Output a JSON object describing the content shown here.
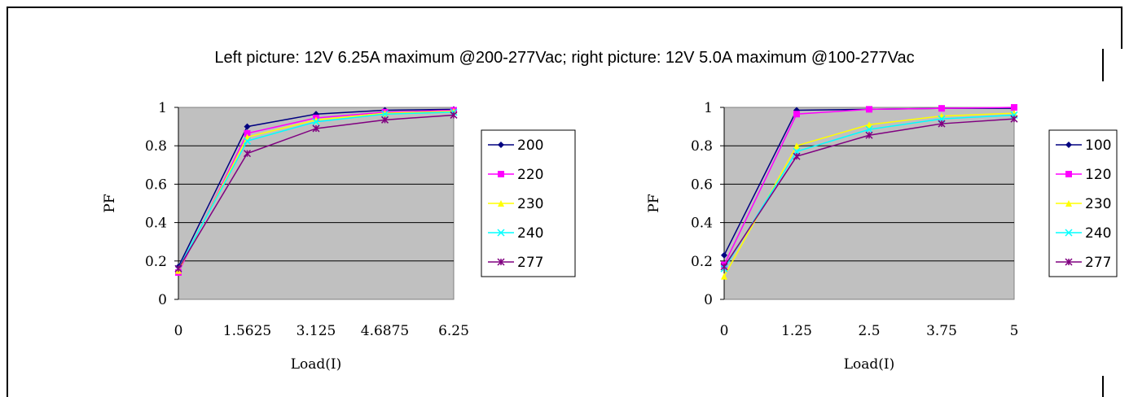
{
  "caption": "Left picture: 12V 6.25A maximum @200-277Vac; right picture: 12V 5.0A maximum @100-277Vac",
  "chart_data": [
    {
      "type": "line",
      "title": "",
      "xlabel": "Load(I)",
      "ylabel": "PF",
      "ylim": [
        0,
        1
      ],
      "yticks": [
        "0",
        "0.2",
        "0.4",
        "0.6",
        "0.8",
        "1"
      ],
      "categories": [
        "0",
        "1.5625",
        "3.125",
        "4.6875",
        "6.25"
      ],
      "grid": "horizontal",
      "plot_background": "#c0c0c0",
      "legend_position": "right",
      "series": [
        {
          "name": "200",
          "color": "#000080",
          "marker": "diamond",
          "values": [
            0.17,
            0.9,
            0.965,
            0.985,
            0.99
          ]
        },
        {
          "name": "220",
          "color": "#ff00ff",
          "marker": "square",
          "values": [
            0.14,
            0.865,
            0.945,
            0.975,
            0.985
          ]
        },
        {
          "name": "230",
          "color": "#ffff00",
          "marker": "triangle",
          "values": [
            0.15,
            0.845,
            0.935,
            0.97,
            0.98
          ]
        },
        {
          "name": "240",
          "color": "#00ffff",
          "marker": "x",
          "values": [
            0.16,
            0.825,
            0.925,
            0.965,
            0.975
          ]
        },
        {
          "name": "277",
          "color": "#800080",
          "marker": "star",
          "values": [
            0.16,
            0.76,
            0.89,
            0.935,
            0.96
          ]
        }
      ]
    },
    {
      "type": "line",
      "title": "",
      "xlabel": "Load(I)",
      "ylabel": "PF",
      "ylim": [
        0,
        1
      ],
      "yticks": [
        "0",
        "0.2",
        "0.4",
        "0.6",
        "0.8",
        "1"
      ],
      "categories": [
        "0",
        "1.25",
        "2.5",
        "3.75",
        "5"
      ],
      "grid": "horizontal",
      "plot_background": "#c0c0c0",
      "legend_position": "right",
      "series": [
        {
          "name": "100",
          "color": "#000080",
          "marker": "diamond",
          "values": [
            0.23,
            0.985,
            0.99,
            0.995,
            0.995
          ]
        },
        {
          "name": "120",
          "color": "#ff00ff",
          "marker": "square",
          "values": [
            0.18,
            0.965,
            0.99,
            0.995,
            1.0
          ]
        },
        {
          "name": "230",
          "color": "#ffff00",
          "marker": "triangle",
          "values": [
            0.12,
            0.8,
            0.91,
            0.955,
            0.97
          ]
        },
        {
          "name": "240",
          "color": "#00ffff",
          "marker": "x",
          "values": [
            0.16,
            0.77,
            0.885,
            0.94,
            0.96
          ]
        },
        {
          "name": "277",
          "color": "#800080",
          "marker": "star",
          "values": [
            0.17,
            0.745,
            0.855,
            0.915,
            0.94
          ]
        }
      ]
    }
  ]
}
